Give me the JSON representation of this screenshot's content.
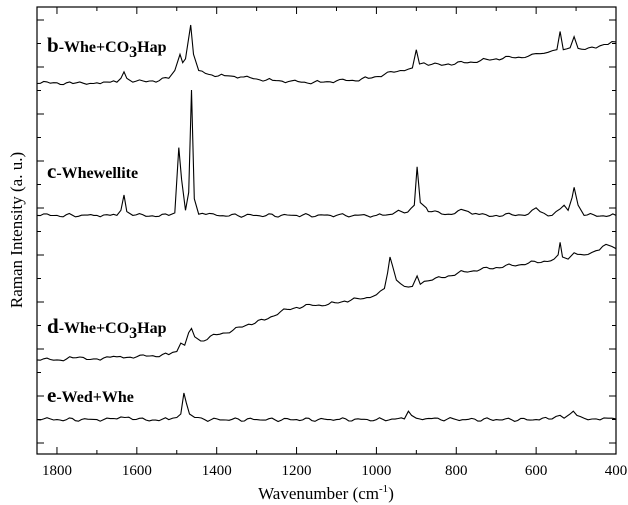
{
  "chart_data": {
    "type": "line",
    "xlabel": "Wavenumber (cm",
    "xlabel_superscript": "-1",
    "xlabel_close": ")",
    "ylabel": "Raman Intensity (a. u.)",
    "xlim": [
      1850,
      400
    ],
    "x_reversed": true,
    "x_ticks": [
      1800,
      1600,
      1400,
      1200,
      1000,
      800,
      600,
      400
    ],
    "y_tick_labels": "none",
    "grid": false,
    "series": [
      {
        "name": "b-Whe+CO3Hap",
        "label_letter": "b",
        "label_text_parts": [
          "-Whe+CO",
          "3",
          "Hap"
        ],
        "baseline": 0.18,
        "points": [
          [
            1850,
            0.1
          ],
          [
            1800,
            0.11
          ],
          [
            1760,
            0.1
          ],
          [
            1700,
            0.11
          ],
          [
            1650,
            0.12
          ],
          [
            1640,
            0.18
          ],
          [
            1632,
            0.28
          ],
          [
            1625,
            0.18
          ],
          [
            1610,
            0.12
          ],
          [
            1560,
            0.14
          ],
          [
            1520,
            0.18
          ],
          [
            1505,
            0.3
          ],
          [
            1492,
            0.55
          ],
          [
            1485,
            0.42
          ],
          [
            1478,
            0.48
          ],
          [
            1465,
            1.0
          ],
          [
            1458,
            0.55
          ],
          [
            1445,
            0.3
          ],
          [
            1420,
            0.24
          ],
          [
            1380,
            0.22
          ],
          [
            1340,
            0.2
          ],
          [
            1300,
            0.17
          ],
          [
            1260,
            0.15
          ],
          [
            1220,
            0.13
          ],
          [
            1180,
            0.12
          ],
          [
            1140,
            0.12
          ],
          [
            1100,
            0.14
          ],
          [
            1060,
            0.15
          ],
          [
            1020,
            0.18
          ],
          [
            980,
            0.24
          ],
          [
            940,
            0.3
          ],
          [
            910,
            0.34
          ],
          [
            900,
            0.62
          ],
          [
            892,
            0.4
          ],
          [
            870,
            0.38
          ],
          [
            820,
            0.4
          ],
          [
            780,
            0.42
          ],
          [
            740,
            0.45
          ],
          [
            700,
            0.48
          ],
          [
            660,
            0.5
          ],
          [
            620,
            0.52
          ],
          [
            600,
            0.56
          ],
          [
            570,
            0.58
          ],
          [
            548,
            0.62
          ],
          [
            540,
            0.9
          ],
          [
            532,
            0.62
          ],
          [
            515,
            0.65
          ],
          [
            505,
            0.82
          ],
          [
            495,
            0.64
          ],
          [
            460,
            0.66
          ],
          [
            430,
            0.7
          ],
          [
            400,
            0.74
          ]
        ]
      },
      {
        "name": "c-Whewellite",
        "label_letter": "c",
        "label_text_parts": [
          "-Whewellite",
          "",
          ""
        ],
        "baseline": 0.0,
        "points": [
          [
            1850,
            0.02
          ],
          [
            1800,
            0.02
          ],
          [
            1700,
            0.02
          ],
          [
            1650,
            0.02
          ],
          [
            1640,
            0.06
          ],
          [
            1632,
            0.18
          ],
          [
            1625,
            0.05
          ],
          [
            1610,
            0.02
          ],
          [
            1520,
            0.02
          ],
          [
            1505,
            0.04
          ],
          [
            1495,
            0.55
          ],
          [
            1488,
            0.3
          ],
          [
            1478,
            0.06
          ],
          [
            1470,
            0.2
          ],
          [
            1463,
            1.0
          ],
          [
            1456,
            0.15
          ],
          [
            1445,
            0.03
          ],
          [
            1400,
            0.02
          ],
          [
            1300,
            0.02
          ],
          [
            1200,
            0.02
          ],
          [
            1100,
            0.02
          ],
          [
            1000,
            0.02
          ],
          [
            960,
            0.03
          ],
          [
            945,
            0.06
          ],
          [
            930,
            0.04
          ],
          [
            905,
            0.1
          ],
          [
            898,
            0.4
          ],
          [
            890,
            0.12
          ],
          [
            875,
            0.08
          ],
          [
            870,
            0.05
          ],
          [
            820,
            0.03
          ],
          [
            780,
            0.06
          ],
          [
            760,
            0.03
          ],
          [
            700,
            0.02
          ],
          [
            620,
            0.03
          ],
          [
            600,
            0.08
          ],
          [
            590,
            0.05
          ],
          [
            560,
            0.02
          ],
          [
            530,
            0.1
          ],
          [
            520,
            0.06
          ],
          [
            510,
            0.16
          ],
          [
            505,
            0.24
          ],
          [
            495,
            0.1
          ],
          [
            480,
            0.02
          ],
          [
            400,
            0.02
          ]
        ]
      },
      {
        "name": "d-Whe+CO3Hap",
        "label_letter": "d",
        "label_text_parts": [
          "-Whe+CO",
          "3",
          "Hap"
        ],
        "baseline": 0.0,
        "points": [
          [
            1850,
            0.02
          ],
          [
            1800,
            0.02
          ],
          [
            1760,
            0.04
          ],
          [
            1700,
            0.03
          ],
          [
            1650,
            0.05
          ],
          [
            1600,
            0.05
          ],
          [
            1560,
            0.06
          ],
          [
            1520,
            0.07
          ],
          [
            1500,
            0.1
          ],
          [
            1490,
            0.18
          ],
          [
            1480,
            0.16
          ],
          [
            1470,
            0.28
          ],
          [
            1463,
            0.32
          ],
          [
            1455,
            0.24
          ],
          [
            1440,
            0.2
          ],
          [
            1400,
            0.26
          ],
          [
            1360,
            0.3
          ],
          [
            1320,
            0.36
          ],
          [
            1280,
            0.4
          ],
          [
            1240,
            0.48
          ],
          [
            1200,
            0.52
          ],
          [
            1160,
            0.54
          ],
          [
            1120,
            0.55
          ],
          [
            1080,
            0.58
          ],
          [
            1040,
            0.6
          ],
          [
            1000,
            0.64
          ],
          [
            980,
            0.7
          ],
          [
            972,
            0.85
          ],
          [
            966,
            1.0
          ],
          [
            960,
            0.92
          ],
          [
            950,
            0.78
          ],
          [
            930,
            0.72
          ],
          [
            910,
            0.72
          ],
          [
            898,
            0.82
          ],
          [
            890,
            0.74
          ],
          [
            860,
            0.78
          ],
          [
            820,
            0.82
          ],
          [
            780,
            0.86
          ],
          [
            740,
            0.88
          ],
          [
            700,
            0.9
          ],
          [
            660,
            0.92
          ],
          [
            620,
            0.94
          ],
          [
            580,
            0.96
          ],
          [
            555,
            0.98
          ],
          [
            545,
            1.02
          ],
          [
            540,
            1.14
          ],
          [
            534,
            1.0
          ],
          [
            520,
            0.98
          ],
          [
            505,
            1.04
          ],
          [
            480,
            1.02
          ],
          [
            450,
            1.06
          ],
          [
            425,
            1.12
          ],
          [
            410,
            1.1
          ],
          [
            400,
            1.08
          ]
        ]
      },
      {
        "name": "e-Wed+Whe",
        "label_letter": "e",
        "label_text_parts": [
          "-Wed+Whe",
          "",
          ""
        ],
        "baseline": 0.0,
        "points": [
          [
            1850,
            0.02
          ],
          [
            1800,
            0.02
          ],
          [
            1700,
            0.02
          ],
          [
            1650,
            0.03
          ],
          [
            1630,
            0.05
          ],
          [
            1610,
            0.02
          ],
          [
            1520,
            0.02
          ],
          [
            1500,
            0.05
          ],
          [
            1490,
            0.1
          ],
          [
            1482,
            0.4
          ],
          [
            1476,
            0.26
          ],
          [
            1468,
            0.1
          ],
          [
            1455,
            0.05
          ],
          [
            1430,
            0.02
          ],
          [
            1300,
            0.02
          ],
          [
            1200,
            0.02
          ],
          [
            1100,
            0.02
          ],
          [
            1000,
            0.02
          ],
          [
            930,
            0.03
          ],
          [
            920,
            0.14
          ],
          [
            912,
            0.08
          ],
          [
            900,
            0.04
          ],
          [
            800,
            0.02
          ],
          [
            700,
            0.02
          ],
          [
            600,
            0.02
          ],
          [
            560,
            0.03
          ],
          [
            540,
            0.08
          ],
          [
            530,
            0.04
          ],
          [
            515,
            0.1
          ],
          [
            507,
            0.14
          ],
          [
            498,
            0.08
          ],
          [
            480,
            0.04
          ],
          [
            450,
            0.03
          ],
          [
            420,
            0.04
          ],
          [
            400,
            0.03
          ]
        ]
      }
    ]
  }
}
